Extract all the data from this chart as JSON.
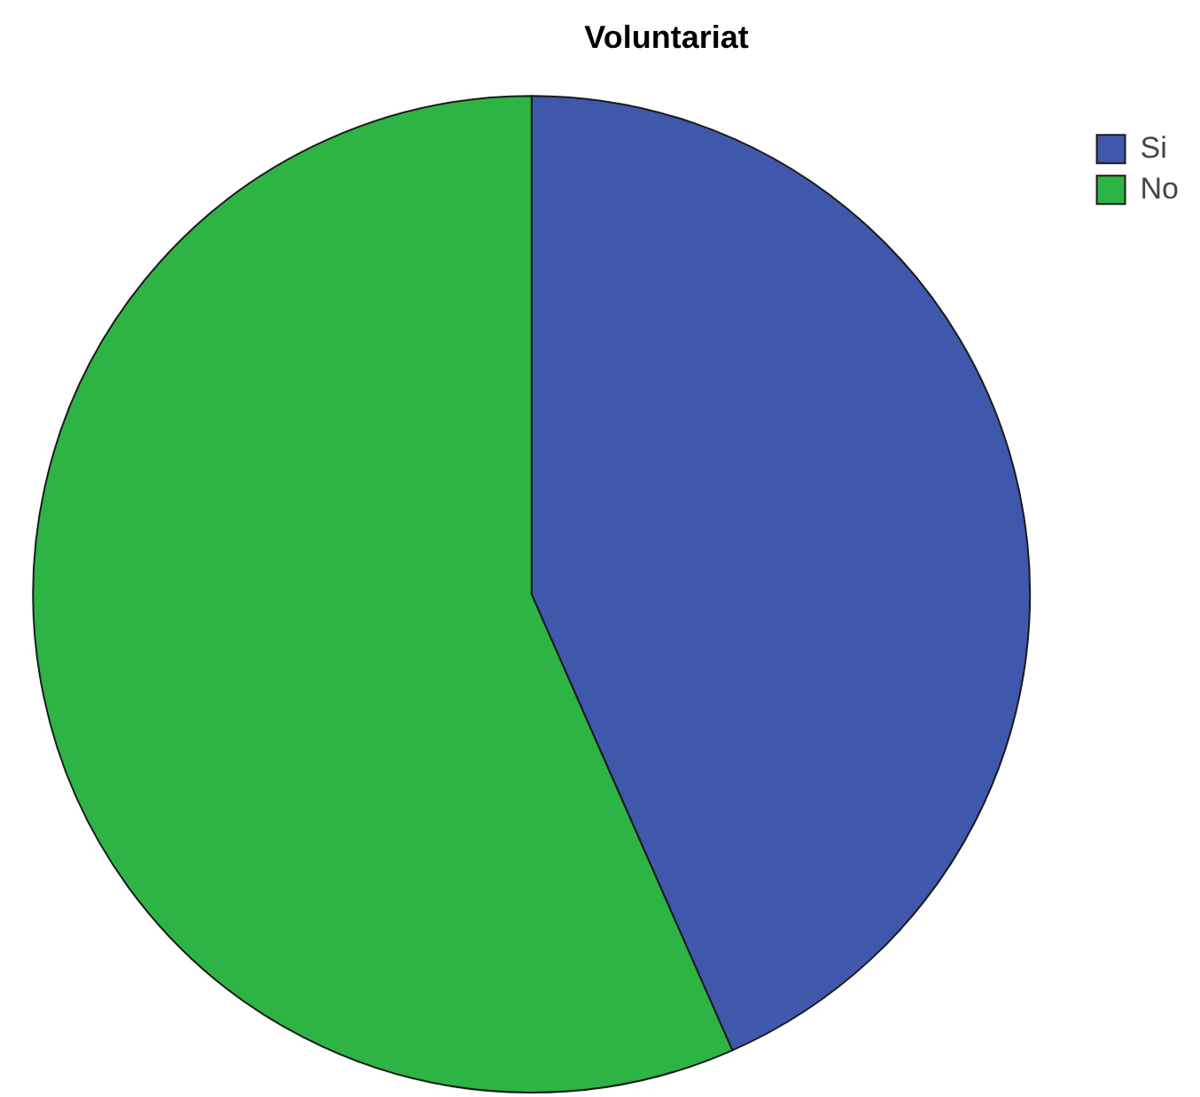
{
  "chart_data": {
    "type": "pie",
    "title": "Voluntariat",
    "categories": [
      "Si",
      "No"
    ],
    "values": [
      43.4,
      56.6
    ],
    "colors": [
      "#3f58ab",
      "#2db445"
    ],
    "legend": "top right"
  }
}
